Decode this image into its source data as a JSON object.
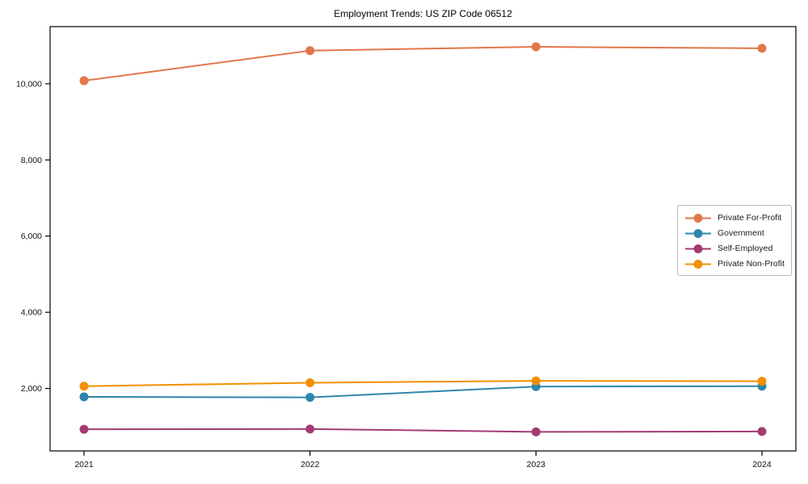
{
  "chart_data": {
    "type": "line",
    "title": "Employment Trends: US ZIP Code 06512",
    "xlabel": "",
    "ylabel": "",
    "categories": [
      "2021",
      "2022",
      "2023",
      "2024"
    ],
    "series": [
      {
        "name": "Private For-Profit",
        "color": "#E2764B",
        "values": [
          10080,
          10870,
          10970,
          10930
        ]
      },
      {
        "name": "Government",
        "color": "#2E86AB",
        "values": [
          1780,
          1765,
          2050,
          2060
        ]
      },
      {
        "name": "Self-Employed",
        "color": "#A23B72",
        "values": [
          930,
          935,
          860,
          870
        ]
      },
      {
        "name": "Private Non-Profit",
        "color": "#F18F01",
        "values": [
          2060,
          2150,
          2200,
          2190
        ]
      }
    ],
    "yticks": [
      2000,
      4000,
      6000,
      8000,
      10000
    ],
    "ytick_labels": [
      "2,000",
      "4,000",
      "6,000",
      "8,000",
      "10,000"
    ],
    "ylim": [
      360,
      11500
    ],
    "grid": false,
    "legend_position": "center right",
    "marker": "circle",
    "spine_color": "#000000"
  }
}
